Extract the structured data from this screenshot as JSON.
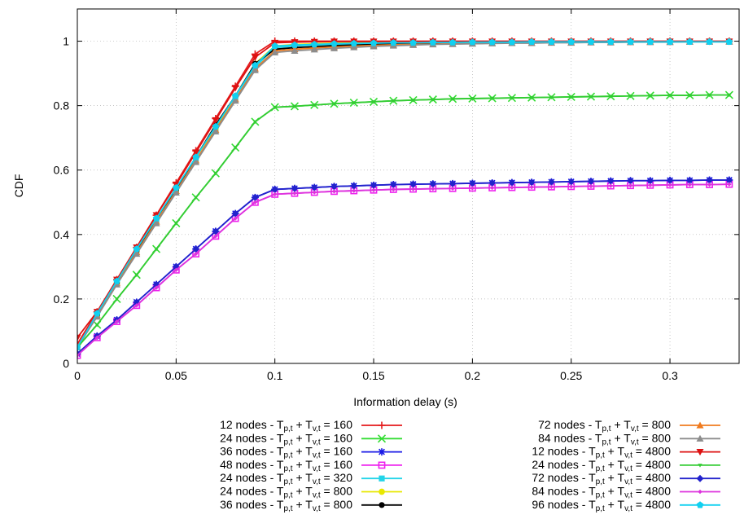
{
  "chart_data": {
    "type": "line",
    "title": "",
    "xlabel": "Information delay (s)",
    "ylabel": "CDF",
    "xlim": [
      0,
      0.335
    ],
    "ylim": [
      0,
      1.1
    ],
    "x_ticks": [
      {
        "value": 0,
        "label": "0"
      },
      {
        "value": 0.05,
        "label": "0.05"
      },
      {
        "value": 0.1,
        "label": "0.1"
      },
      {
        "value": 0.15,
        "label": "0.15"
      },
      {
        "value": 0.2,
        "label": "0.2"
      },
      {
        "value": 0.25,
        "label": "0.25"
      },
      {
        "value": 0.3,
        "label": "0.3"
      }
    ],
    "y_ticks": [
      {
        "value": 0,
        "label": "0"
      },
      {
        "value": 0.2,
        "label": "0.2"
      },
      {
        "value": 0.4,
        "label": "0.4"
      },
      {
        "value": 0.6,
        "label": "0.6"
      },
      {
        "value": 0.8,
        "label": "0.8"
      },
      {
        "value": 1,
        "label": "1"
      }
    ],
    "grid": true,
    "legend_position": "bottom",
    "x": [
      0,
      0.01,
      0.02,
      0.03,
      0.04,
      0.05,
      0.06,
      0.07,
      0.08,
      0.09,
      0.1,
      0.11,
      0.12,
      0.13,
      0.14,
      0.15,
      0.16,
      0.17,
      0.18,
      0.19,
      0.2,
      0.21,
      0.22,
      0.23,
      0.24,
      0.25,
      0.26,
      0.27,
      0.28,
      0.29,
      0.3,
      0.31,
      0.32,
      0.33
    ],
    "series": [
      {
        "name_main": "12 nodes - T",
        "sub1": "p,t",
        "mid": " + T",
        "sub2": "v,t",
        "tail": " = 160",
        "color": "#e41a1c",
        "marker": "plus",
        "values": [
          0.06,
          0.16,
          0.26,
          0.36,
          0.46,
          0.56,
          0.66,
          0.76,
          0.86,
          0.96,
          1.0,
          1.0,
          1.0,
          1.0,
          1.0,
          1.0,
          1.0,
          1.0,
          1.0,
          1.0,
          1.0,
          1.0,
          1.0,
          1.0,
          1.0,
          1.0,
          1.0,
          1.0,
          1.0,
          1.0,
          1.0,
          1.0,
          1.0,
          1.0
        ]
      },
      {
        "name_main": "24 nodes - T",
        "sub1": "p,t",
        "mid": " + T",
        "sub2": "v,t",
        "tail": " = 160",
        "color": "#33dd33",
        "marker": "x",
        "values": [
          0.05,
          0.12,
          0.2,
          0.275,
          0.355,
          0.435,
          0.515,
          0.59,
          0.67,
          0.75,
          0.795,
          0.798,
          0.802,
          0.806,
          0.809,
          0.812,
          0.815,
          0.817,
          0.819,
          0.821,
          0.822,
          0.823,
          0.824,
          0.825,
          0.826,
          0.827,
          0.828,
          0.829,
          0.83,
          0.831,
          0.832,
          0.832,
          0.833,
          0.833
        ]
      },
      {
        "name_main": "36 nodes - T",
        "sub1": "p,t",
        "mid": " + T",
        "sub2": "v,t",
        "tail": " = 160",
        "color": "#1a1ae6",
        "marker": "star",
        "values": [
          0.03,
          0.085,
          0.135,
          0.19,
          0.245,
          0.3,
          0.355,
          0.41,
          0.465,
          0.515,
          0.54,
          0.543,
          0.546,
          0.549,
          0.551,
          0.553,
          0.555,
          0.556,
          0.557,
          0.558,
          0.559,
          0.56,
          0.561,
          0.562,
          0.563,
          0.564,
          0.565,
          0.566,
          0.567,
          0.567,
          0.568,
          0.568,
          0.569,
          0.569
        ]
      },
      {
        "name_main": "48 nodes - T",
        "sub1": "p,t",
        "mid": " + T",
        "sub2": "v,t",
        "tail": " = 160",
        "color": "#ee22ee",
        "marker": "square",
        "values": [
          0.025,
          0.08,
          0.13,
          0.18,
          0.235,
          0.29,
          0.34,
          0.395,
          0.45,
          0.5,
          0.525,
          0.528,
          0.531,
          0.534,
          0.536,
          0.538,
          0.54,
          0.541,
          0.542,
          0.543,
          0.544,
          0.545,
          0.546,
          0.547,
          0.548,
          0.549,
          0.55,
          0.551,
          0.552,
          0.553,
          0.554,
          0.555,
          0.555,
          0.556
        ]
      },
      {
        "name_main": "24 nodes - T",
        "sub1": "p,t",
        "mid": " + T",
        "sub2": "v,t",
        "tail": " = 320",
        "color": "#22d4e8",
        "marker": "filled-square",
        "values": [
          0.05,
          0.15,
          0.25,
          0.35,
          0.44,
          0.53,
          0.63,
          0.72,
          0.82,
          0.92,
          0.98,
          0.985,
          0.988,
          0.99,
          0.991,
          0.992,
          0.993,
          0.994,
          0.995,
          0.995,
          0.996,
          0.996,
          0.997,
          0.997,
          0.997,
          0.998,
          0.998,
          0.998,
          0.998,
          0.999,
          0.999,
          0.999,
          0.999,
          0.999
        ]
      },
      {
        "name_main": "24 nodes - T",
        "sub1": "p,t",
        "mid": " + T",
        "sub2": "v,t",
        "tail": " = 800",
        "color": "#e8e800",
        "marker": "circle",
        "values": [
          0.05,
          0.15,
          0.25,
          0.35,
          0.45,
          0.54,
          0.64,
          0.73,
          0.83,
          0.93,
          0.985,
          0.99,
          0.992,
          0.994,
          0.995,
          0.996,
          0.996,
          0.997,
          0.997,
          0.998,
          0.998,
          0.998,
          0.998,
          0.999,
          0.999,
          0.999,
          0.999,
          0.999,
          0.999,
          0.999,
          0.999,
          0.999,
          0.999,
          0.999
        ]
      },
      {
        "name_main": "36 nodes - T",
        "sub1": "p,t",
        "mid": " + T",
        "sub2": "v,t",
        "tail": " = 800",
        "color": "#000000",
        "marker": "filled-circle",
        "values": [
          0.05,
          0.15,
          0.25,
          0.35,
          0.45,
          0.54,
          0.64,
          0.74,
          0.83,
          0.93,
          0.975,
          0.98,
          0.983,
          0.986,
          0.988,
          0.99,
          0.991,
          0.992,
          0.993,
          0.994,
          0.995,
          0.995,
          0.996,
          0.996,
          0.997,
          0.997,
          0.997,
          0.998,
          0.998,
          0.998,
          0.998,
          0.999,
          0.999,
          0.999
        ]
      },
      {
        "name_main": "72 nodes - T",
        "sub1": "p,t",
        "mid": " + T",
        "sub2": "v,t",
        "tail": " = 800",
        "color": "#f07b1f",
        "marker": "triangle",
        "values": [
          0.05,
          0.15,
          0.25,
          0.345,
          0.44,
          0.535,
          0.63,
          0.725,
          0.82,
          0.915,
          0.97,
          0.975,
          0.979,
          0.982,
          0.985,
          0.987,
          0.989,
          0.99,
          0.991,
          0.992,
          0.993,
          0.994,
          0.995,
          0.995,
          0.996,
          0.996,
          0.997,
          0.997,
          0.997,
          0.998,
          0.998,
          0.998,
          0.999,
          0.999
        ]
      },
      {
        "name_main": "84 nodes - T",
        "sub1": "p,t",
        "mid": " + T",
        "sub2": "v,t",
        "tail": " = 800",
        "color": "#8c8c8c",
        "marker": "filled-triangle",
        "values": [
          0.05,
          0.145,
          0.245,
          0.34,
          0.435,
          0.53,
          0.625,
          0.72,
          0.815,
          0.91,
          0.965,
          0.97,
          0.974,
          0.978,
          0.981,
          0.984,
          0.986,
          0.988,
          0.99,
          0.991,
          0.992,
          0.993,
          0.994,
          0.994,
          0.995,
          0.995,
          0.996,
          0.996,
          0.997,
          0.997,
          0.997,
          0.998,
          0.998,
          0.998
        ]
      },
      {
        "name_main": "12 nodes - T",
        "sub1": "p,t",
        "mid": " + T",
        "sub2": "v,t",
        "tail": " = 4800",
        "color": "#dd1111",
        "marker": "filled-down-triangle",
        "values": [
          0.08,
          0.16,
          0.26,
          0.36,
          0.46,
          0.555,
          0.655,
          0.755,
          0.855,
          0.95,
          0.995,
          0.997,
          0.998,
          0.999,
          0.999,
          0.999,
          0.999,
          0.999,
          0.999,
          0.999,
          0.999,
          0.999,
          0.999,
          0.999,
          0.999,
          0.999,
          0.999,
          0.999,
          0.999,
          0.999,
          0.999,
          0.999,
          0.999,
          0.999
        ]
      },
      {
        "name_main": "24 nodes - T",
        "sub1": "p,t",
        "mid": " + T",
        "sub2": "v,t",
        "tail": " = 4800",
        "color": "#33cc33",
        "marker": "small-triangle",
        "values": [
          0.05,
          0.12,
          0.2,
          0.275,
          0.355,
          0.435,
          0.515,
          0.59,
          0.67,
          0.75,
          0.795,
          0.798,
          0.802,
          0.806,
          0.809,
          0.812,
          0.815,
          0.817,
          0.819,
          0.821,
          0.822,
          0.823,
          0.824,
          0.825,
          0.826,
          0.827,
          0.828,
          0.829,
          0.83,
          0.831,
          0.832,
          0.832,
          0.833,
          0.833
        ]
      },
      {
        "name_main": "72 nodes - T",
        "sub1": "p,t",
        "mid": " + T",
        "sub2": "v,t",
        "tail": " = 4800",
        "color": "#2222cc",
        "marker": "filled-diamond",
        "values": [
          0.03,
          0.085,
          0.135,
          0.19,
          0.245,
          0.3,
          0.355,
          0.41,
          0.465,
          0.515,
          0.54,
          0.543,
          0.546,
          0.549,
          0.551,
          0.553,
          0.555,
          0.556,
          0.557,
          0.558,
          0.559,
          0.56,
          0.561,
          0.562,
          0.563,
          0.564,
          0.565,
          0.566,
          0.567,
          0.567,
          0.568,
          0.568,
          0.569,
          0.569
        ]
      },
      {
        "name_main": "84 nodes - T",
        "sub1": "p,t",
        "mid": " + T",
        "sub2": "v,t",
        "tail": " = 4800",
        "color": "#dd33dd",
        "marker": "small-diamond",
        "values": [
          0.025,
          0.08,
          0.13,
          0.18,
          0.235,
          0.29,
          0.34,
          0.395,
          0.45,
          0.5,
          0.525,
          0.528,
          0.531,
          0.534,
          0.536,
          0.538,
          0.54,
          0.541,
          0.542,
          0.543,
          0.544,
          0.545,
          0.546,
          0.547,
          0.548,
          0.549,
          0.55,
          0.551,
          0.552,
          0.553,
          0.554,
          0.555,
          0.555,
          0.556
        ]
      },
      {
        "name_main": "96 nodes - T",
        "sub1": "p,t",
        "mid": " + T",
        "sub2": "v,t",
        "tail": " = 4800",
        "color": "#11d0f0",
        "marker": "filled-pentagon",
        "values": [
          0.05,
          0.155,
          0.255,
          0.355,
          0.45,
          0.545,
          0.64,
          0.735,
          0.83,
          0.925,
          0.985,
          0.988,
          0.99,
          0.992,
          0.993,
          0.994,
          0.995,
          0.995,
          0.996,
          0.996,
          0.997,
          0.997,
          0.997,
          0.998,
          0.998,
          0.998,
          0.998,
          0.998,
          0.998,
          0.998,
          0.998,
          0.998,
          0.998,
          0.998
        ]
      }
    ]
  }
}
